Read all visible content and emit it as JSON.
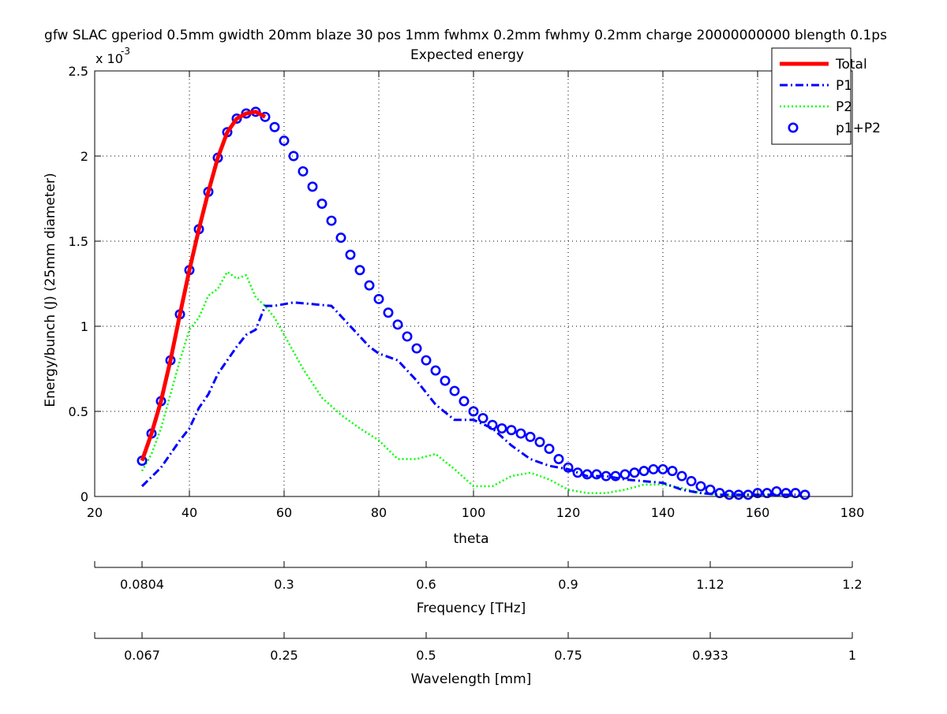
{
  "chart_data": {
    "type": "line",
    "title": "gfw SLAC gperiod 0.5mm gwidth 20mm blaze 30 pos 1mm fwhmx 0.2mm fwhmy 0.2mm charge 20000000000 blength 0.1ps",
    "subtitle": "Expected energy",
    "xlabel": "theta",
    "ylabel": "Energy/bunch (J) (25mm diameter)",
    "y_exponent_label": "x 10",
    "y_exponent_power": "-3",
    "xlim": [
      20,
      180
    ],
    "ylim": [
      0,
      0.0025
    ],
    "x_ticks": [
      20,
      40,
      60,
      80,
      100,
      120,
      140,
      160,
      180
    ],
    "x_tick_labels": [
      "20",
      "40",
      "60",
      "80",
      "100",
      "120",
      "140",
      "160",
      "180"
    ],
    "y_ticks": [
      0,
      0.0005,
      0.001,
      0.0015,
      0.002,
      0.0025
    ],
    "y_tick_labels": [
      "0",
      "0.5",
      "1",
      "1.5",
      "2",
      "2.5"
    ],
    "grid": true,
    "legend_position": "top-right",
    "colors": {
      "total": "#ff0000",
      "p1": "#0000ff",
      "p2": "#00ff00",
      "markers": "#0000ff"
    },
    "series": [
      {
        "name": "Total",
        "style": "solid",
        "x": [
          30,
          32,
          34,
          36,
          38,
          40,
          42,
          44,
          46,
          48,
          50,
          52,
          54,
          56
        ],
        "y": [
          0.00021,
          0.00037,
          0.00056,
          0.0008,
          0.00107,
          0.00133,
          0.00157,
          0.00179,
          0.00199,
          0.00214,
          0.00222,
          0.00225,
          0.00226,
          0.00223
        ]
      },
      {
        "name": "P1",
        "style": "dashdot",
        "x": [
          30,
          34,
          36,
          38,
          40,
          42,
          44,
          46,
          48,
          50,
          52,
          54,
          56,
          58,
          62,
          66,
          70,
          74,
          78,
          80,
          84,
          88,
          92,
          96,
          100,
          104,
          108,
          112,
          116,
          120,
          124,
          128,
          132,
          136,
          140,
          144,
          148,
          152,
          156,
          160,
          164,
          168
        ],
        "y": [
          6e-05,
          0.00017,
          0.00025,
          0.00033,
          0.0004,
          0.00052,
          0.0006,
          0.00072,
          0.0008,
          0.00088,
          0.00095,
          0.00098,
          0.00112,
          0.00112,
          0.00114,
          0.00113,
          0.00112,
          0.001,
          0.00088,
          0.00084,
          0.0008,
          0.00068,
          0.00054,
          0.00045,
          0.00045,
          0.0004,
          0.0003,
          0.00022,
          0.00018,
          0.00016,
          0.00012,
          0.00012,
          0.0001,
          9e-05,
          8e-05,
          4e-05,
          2e-05,
          1e-05,
          1e-05,
          1e-05,
          1e-05,
          1e-05
        ]
      },
      {
        "name": "P2",
        "style": "dotted",
        "x": [
          30,
          32,
          34,
          36,
          38,
          40,
          42,
          44,
          46,
          48,
          50,
          52,
          54,
          56,
          58,
          60,
          64,
          68,
          72,
          76,
          80,
          84,
          88,
          92,
          96,
          100,
          104,
          108,
          112,
          116,
          120,
          124,
          128,
          132,
          136,
          140,
          144,
          148,
          152,
          156,
          160,
          164,
          168
        ],
        "y": [
          0.00015,
          0.00025,
          0.0004,
          0.0006,
          0.0008,
          0.00098,
          0.00105,
          0.00118,
          0.00122,
          0.00132,
          0.00128,
          0.0013,
          0.00117,
          0.00112,
          0.00105,
          0.00095,
          0.00075,
          0.00058,
          0.00048,
          0.0004,
          0.00033,
          0.00022,
          0.00022,
          0.00025,
          0.00016,
          6e-05,
          6e-05,
          0.00012,
          0.00014,
          0.0001,
          4e-05,
          2e-05,
          2e-05,
          4e-05,
          7e-05,
          7e-05,
          5e-05,
          2e-05,
          1e-05,
          1e-05,
          1e-05,
          1e-05,
          1e-05
        ]
      },
      {
        "name": "p1+P2",
        "style": "markers",
        "x": [
          30,
          32,
          34,
          36,
          38,
          40,
          42,
          44,
          46,
          48,
          50,
          52,
          54,
          56,
          58,
          60,
          62,
          64,
          66,
          68,
          70,
          72,
          74,
          76,
          78,
          80,
          82,
          84,
          86,
          88,
          90,
          92,
          94,
          96,
          98,
          100,
          102,
          104,
          106,
          108,
          110,
          112,
          114,
          116,
          118,
          120,
          122,
          124,
          126,
          128,
          130,
          132,
          134,
          136,
          138,
          140,
          142,
          144,
          146,
          148,
          150,
          152,
          154,
          156,
          158,
          160,
          162,
          164,
          166,
          168,
          170
        ],
        "y": [
          0.00021,
          0.00037,
          0.00056,
          0.0008,
          0.00107,
          0.00133,
          0.00157,
          0.00179,
          0.00199,
          0.00214,
          0.00222,
          0.00225,
          0.00226,
          0.00223,
          0.00217,
          0.00209,
          0.002,
          0.00191,
          0.00182,
          0.00172,
          0.00162,
          0.00152,
          0.00142,
          0.00133,
          0.00124,
          0.00116,
          0.00108,
          0.00101,
          0.00094,
          0.00087,
          0.0008,
          0.00074,
          0.00068,
          0.00062,
          0.00056,
          0.0005,
          0.00046,
          0.00042,
          0.0004,
          0.00039,
          0.00037,
          0.00035,
          0.00032,
          0.00028,
          0.00022,
          0.00017,
          0.00014,
          0.00013,
          0.00013,
          0.00012,
          0.00012,
          0.00013,
          0.00014,
          0.00015,
          0.00016,
          0.00016,
          0.00015,
          0.00012,
          9e-05,
          6e-05,
          4e-05,
          2e-05,
          1e-05,
          1e-05,
          1e-05,
          2e-05,
          2e-05,
          3e-05,
          2e-05,
          2e-05,
          1e-05
        ]
      }
    ],
    "secondary_axes": [
      {
        "label": "Frequency [THz]",
        "tick_labels": [
          "0.0804",
          "0.3",
          "0.6",
          "0.9",
          "1.12",
          "1.2"
        ],
        "tick_theta": [
          30,
          60,
          90,
          120,
          150,
          180
        ]
      },
      {
        "label": "Wavelength [mm]",
        "tick_labels": [
          "0.067",
          "0.25",
          "0.5",
          "0.75",
          "0.933",
          "1"
        ],
        "tick_theta": [
          30,
          60,
          90,
          120,
          150,
          180
        ]
      }
    ]
  }
}
